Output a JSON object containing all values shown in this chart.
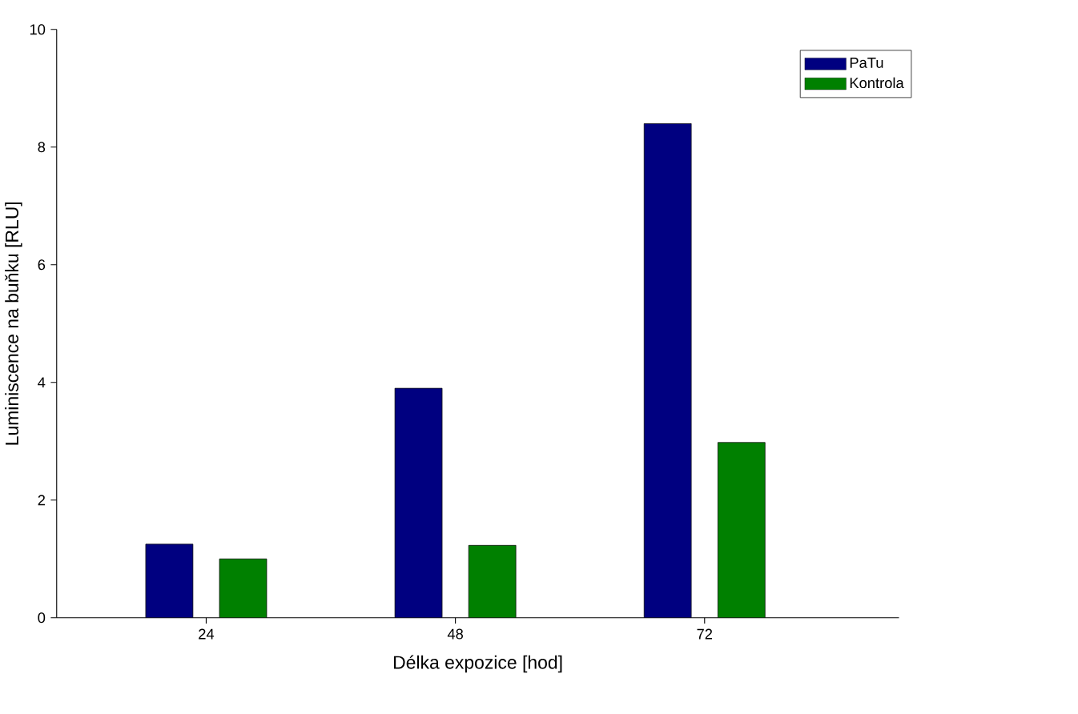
{
  "chart_data": {
    "type": "bar",
    "xlabel": "Délka expozice [hod]",
    "ylabel": "Luminiscence na buňku [RLU]",
    "categories": [
      "24",
      "48",
      "72"
    ],
    "series": [
      {
        "name": "PaTu",
        "color": "#000080",
        "values": [
          1.25,
          3.9,
          8.4
        ]
      },
      {
        "name": "Kontrola",
        "color": "#008000",
        "values": [
          1.0,
          1.23,
          2.98
        ]
      }
    ],
    "ylim": [
      0,
      10
    ],
    "yticks": [
      0,
      2,
      4,
      6,
      8,
      10
    ],
    "legend": "top right",
    "grid": false
  }
}
